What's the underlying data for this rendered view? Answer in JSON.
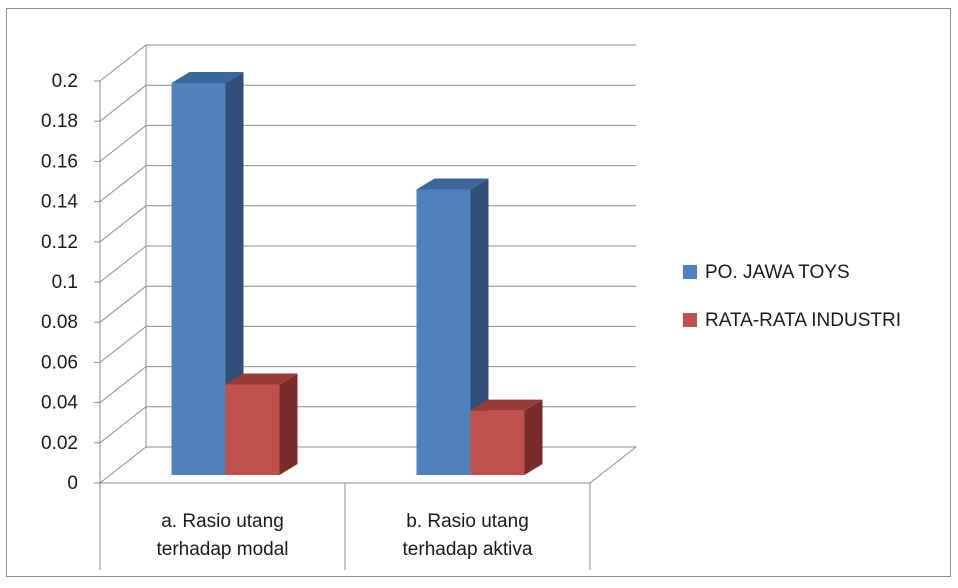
{
  "chart_data": {
    "type": "bar",
    "title": "",
    "xlabel": "",
    "ylabel": "",
    "categories": [
      [
        "a. Rasio utang",
        "terhadap modal"
      ],
      [
        "b. Rasio utang",
        "terhadap aktiva"
      ]
    ],
    "series": [
      {
        "name": "PO. JAWA TOYS",
        "values": [
          0.2,
          0.147
        ],
        "color": "#4F81BD",
        "side_color": "#2F4F78",
        "top_color": "#3D6699"
      },
      {
        "name": "RATA-RATA INDUSTRI",
        "values": [
          0.05,
          0.037
        ],
        "color": "#C0504D",
        "side_color": "#7B2B29",
        "top_color": "#9A3A37"
      }
    ],
    "ylim": [
      0,
      0.2
    ],
    "yticks": [
      "0",
      "0.02",
      "0.04",
      "0.06",
      "0.08",
      "0.1",
      "0.12",
      "0.14",
      "0.16",
      "0.18",
      "0.2"
    ],
    "grid": true,
    "legend_position": "right",
    "style": "3d-clustered-column"
  }
}
